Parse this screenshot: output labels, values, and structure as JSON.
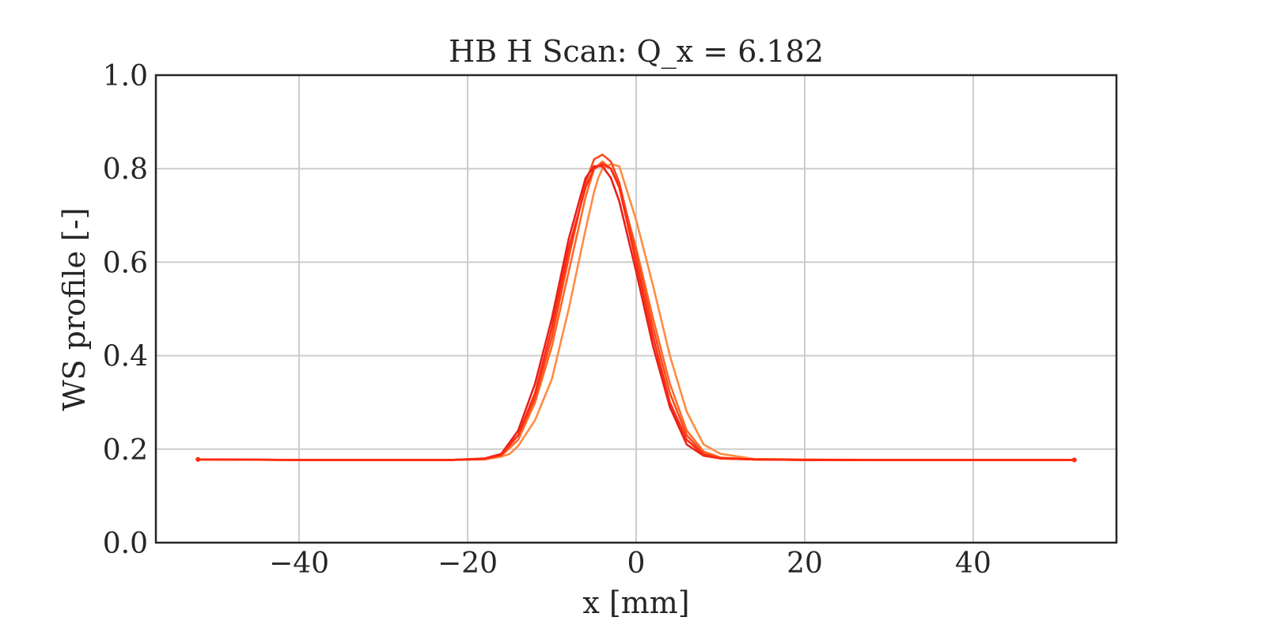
{
  "chart_data": {
    "type": "line",
    "title": "HB H Scan: Q_x = 6.182",
    "xlabel": "x [mm]",
    "ylabel": "WS profile [-]",
    "xlim": [
      -57,
      57
    ],
    "ylim": [
      0.0,
      1.0
    ],
    "xticks": [
      -40,
      -20,
      0,
      20,
      40
    ],
    "xtick_labels": [
      "−40",
      "−20",
      "0",
      "20",
      "40"
    ],
    "yticks": [
      0.0,
      0.2,
      0.4,
      0.6,
      0.8,
      1.0
    ],
    "ytick_labels": [
      "0.0",
      "0.2",
      "0.4",
      "0.6",
      "0.8",
      "1.0"
    ],
    "grid": true,
    "legend": "none",
    "colors": {
      "grid": "#cccccc",
      "axes": "#262626",
      "series": [
        "#ff8c42",
        "#ff6a2a",
        "#f94a1c",
        "#e8201a",
        "#ff2a10"
      ]
    },
    "series": [
      {
        "x": [
          -52,
          -40,
          -30,
          -22,
          -18,
          -16,
          -15,
          -14,
          -12,
          -10,
          -8,
          -6,
          -5,
          -4.5,
          -4,
          -3,
          -2,
          0,
          2,
          4,
          6,
          8,
          10,
          14,
          20,
          30,
          40,
          52
        ],
        "y": [
          0.178,
          0.177,
          0.177,
          0.177,
          0.178,
          0.184,
          0.19,
          0.207,
          0.262,
          0.35,
          0.5,
          0.67,
          0.75,
          0.78,
          0.8,
          0.81,
          0.805,
          0.69,
          0.55,
          0.4,
          0.28,
          0.21,
          0.19,
          0.179,
          0.178,
          0.177,
          0.177,
          0.177
        ]
      },
      {
        "x": [
          -52,
          -40,
          -30,
          -22,
          -18,
          -16,
          -14,
          -12,
          -10,
          -8,
          -6,
          -5,
          -4,
          -3,
          -2,
          0,
          2,
          4,
          6,
          8,
          10,
          14,
          20,
          30,
          40,
          52
        ],
        "y": [
          0.178,
          0.177,
          0.177,
          0.177,
          0.179,
          0.186,
          0.22,
          0.3,
          0.42,
          0.58,
          0.74,
          0.8,
          0.815,
          0.8,
          0.76,
          0.63,
          0.48,
          0.34,
          0.24,
          0.195,
          0.182,
          0.178,
          0.177,
          0.177,
          0.177,
          0.177
        ]
      },
      {
        "x": [
          -52,
          -40,
          -30,
          -22,
          -18,
          -16,
          -14,
          -12,
          -10,
          -8,
          -6,
          -5,
          -4,
          -3,
          -2,
          0,
          2,
          4,
          6,
          8,
          10,
          14,
          20,
          30,
          40,
          52
        ],
        "y": [
          0.178,
          0.177,
          0.177,
          0.177,
          0.179,
          0.19,
          0.23,
          0.31,
          0.44,
          0.61,
          0.77,
          0.82,
          0.83,
          0.815,
          0.77,
          0.62,
          0.46,
          0.32,
          0.23,
          0.19,
          0.181,
          0.178,
          0.177,
          0.177,
          0.177,
          0.177
        ]
      },
      {
        "x": [
          -52,
          -40,
          -30,
          -22,
          -18,
          -16,
          -14,
          -12,
          -10,
          -8,
          -6,
          -5,
          -4,
          -3,
          -2,
          0,
          2,
          4,
          6,
          8,
          10,
          14,
          20,
          30,
          40,
          52
        ],
        "y": [
          0.178,
          0.177,
          0.177,
          0.177,
          0.18,
          0.19,
          0.24,
          0.34,
          0.48,
          0.65,
          0.78,
          0.805,
          0.805,
          0.78,
          0.73,
          0.58,
          0.42,
          0.29,
          0.21,
          0.186,
          0.18,
          0.178,
          0.177,
          0.177,
          0.177,
          0.177
        ]
      },
      {
        "x": [
          -52,
          -40,
          -30,
          -22,
          -18,
          -16,
          -14,
          -12,
          -10,
          -8,
          -6,
          -5,
          -4,
          -3,
          -2,
          0,
          2,
          4,
          6,
          8,
          10,
          14,
          20,
          30,
          40,
          52
        ],
        "y": [
          0.178,
          0.177,
          0.177,
          0.177,
          0.179,
          0.188,
          0.23,
          0.32,
          0.46,
          0.63,
          0.76,
          0.8,
          0.81,
          0.8,
          0.76,
          0.6,
          0.44,
          0.3,
          0.22,
          0.188,
          0.18,
          0.178,
          0.177,
          0.177,
          0.177,
          0.177
        ]
      }
    ]
  }
}
